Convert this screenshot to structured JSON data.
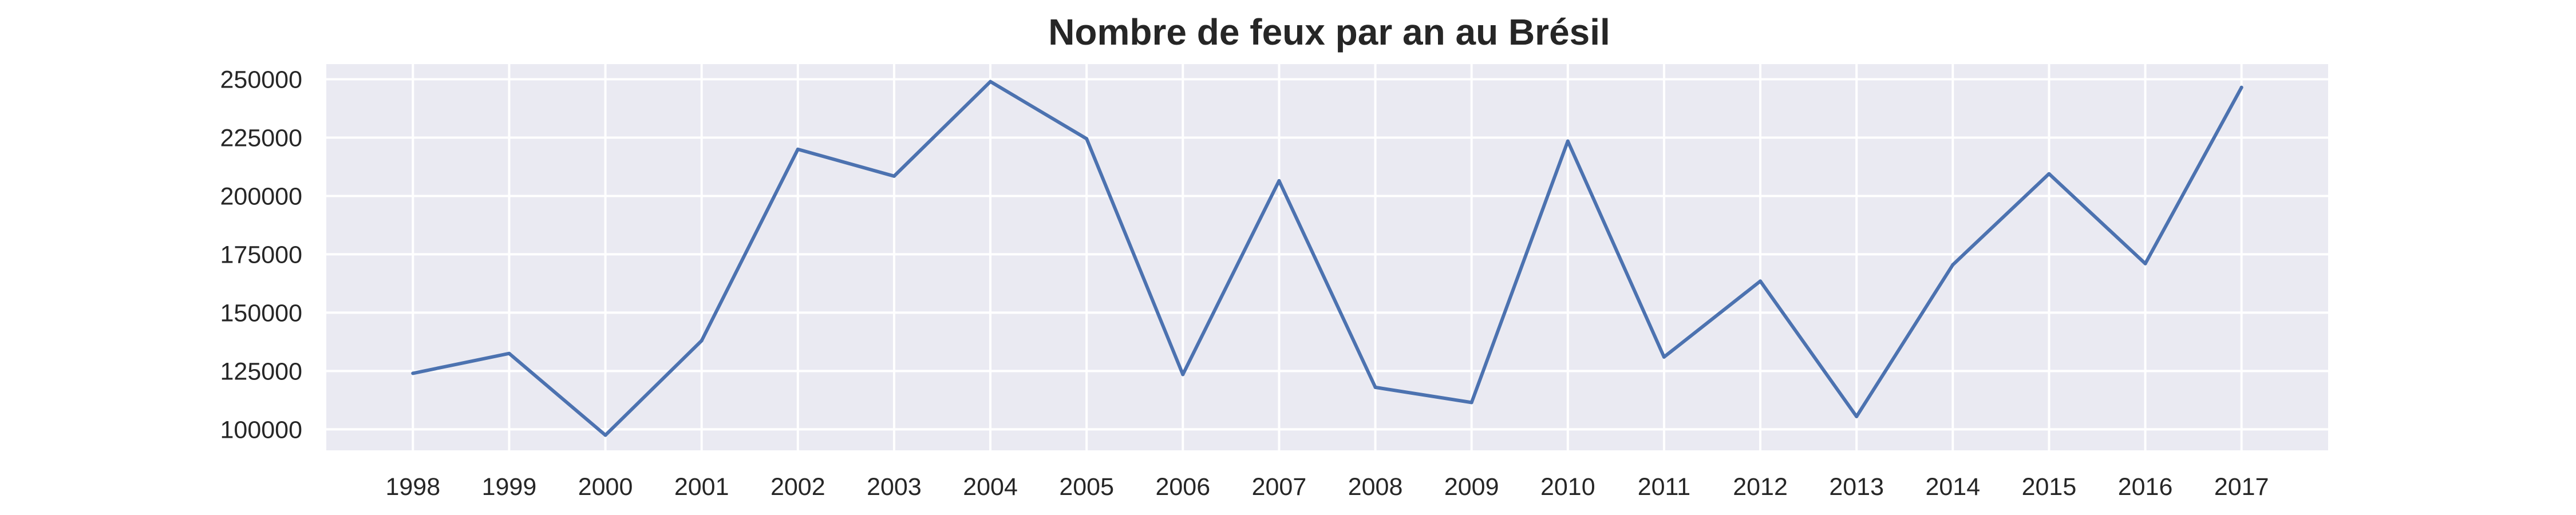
{
  "chart_data": {
    "type": "line",
    "title": "Nombre de feux par an au Brésil",
    "xlabel": "",
    "ylabel": "",
    "x": [
      1998,
      1999,
      2000,
      2001,
      2002,
      2003,
      2004,
      2005,
      2006,
      2007,
      2008,
      2009,
      2010,
      2011,
      2012,
      2013,
      2014,
      2015,
      2016,
      2017
    ],
    "x_tick_labels": [
      "1998",
      "1999",
      "2000",
      "2001",
      "2002",
      "2003",
      "2004",
      "2005",
      "2006",
      "2007",
      "2008",
      "2009",
      "2010",
      "2011",
      "2012",
      "2013",
      "2014",
      "2015",
      "2016",
      "2017"
    ],
    "series": [
      {
        "values": [
          124000,
          132500,
          97500,
          138000,
          220000,
          208500,
          249000,
          224500,
          123500,
          206500,
          118000,
          111500,
          223500,
          131000,
          163500,
          105500,
          170500,
          209500,
          171000,
          246500
        ],
        "color": "#4c72b0"
      }
    ],
    "y_ticks": [
      100000,
      125000,
      150000,
      175000,
      200000,
      225000,
      250000
    ],
    "y_tick_labels": [
      "100000",
      "125000",
      "150000",
      "175000",
      "200000",
      "225000",
      "250000"
    ],
    "ylim": [
      91000,
      256500
    ],
    "xlim": [
      1997.1,
      2017.9
    ],
    "grid": true,
    "legend": "none",
    "colors": {
      "plot_background": "#eaeaf2",
      "grid": "#ffffff",
      "text": "#262626",
      "line": "#4c72b0"
    }
  }
}
